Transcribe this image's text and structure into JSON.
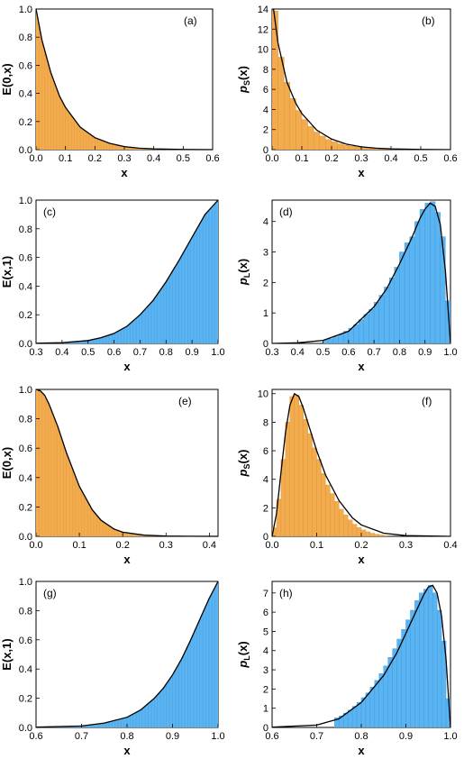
{
  "colors": {
    "orange": "#f2ac4e",
    "orange_edge": "#dc9136",
    "blue": "#5ab4f2",
    "blue_edge": "#3c96d9",
    "curve": "#000000"
  },
  "chart_data": [
    {
      "id": "a",
      "type": "area",
      "panel_label": "(a)",
      "xlabel": "x",
      "ylabel": "E(0,x)",
      "xlim": [
        0,
        0.6
      ],
      "ylim": [
        0,
        1.0
      ],
      "xticks": [
        0.0,
        0.1,
        0.2,
        0.3,
        0.4,
        0.5,
        0.6
      ],
      "yticks": [
        0.0,
        0.2,
        0.4,
        0.6,
        0.8,
        1.0
      ],
      "fill": "orange",
      "x": [
        0.0,
        0.02,
        0.05,
        0.08,
        0.1,
        0.15,
        0.2,
        0.25,
        0.3,
        0.35,
        0.4,
        0.5,
        0.6
      ],
      "y": [
        1.0,
        0.78,
        0.55,
        0.38,
        0.3,
        0.16,
        0.085,
        0.045,
        0.022,
        0.01,
        0.005,
        0.001,
        0.0
      ]
    },
    {
      "id": "b",
      "type": "bar",
      "panel_label": "(b)",
      "xlabel": "x",
      "ylabel": "pS(x)",
      "ylabel_main": "p",
      "ylabel_sub": "S",
      "ylabel_tail": "(x)",
      "xlim": [
        0,
        0.6
      ],
      "ylim": [
        0,
        14
      ],
      "xticks": [
        0.0,
        0.1,
        0.2,
        0.3,
        0.4,
        0.5,
        0.6
      ],
      "yticks": [
        0,
        2,
        4,
        6,
        8,
        10,
        12,
        14
      ],
      "fill": "orange",
      "bin_width": 0.02,
      "x": [
        0.01,
        0.03,
        0.05,
        0.07,
        0.09,
        0.11,
        0.13,
        0.15,
        0.17,
        0.19,
        0.21,
        0.23,
        0.25,
        0.27,
        0.29,
        0.31,
        0.33,
        0.35,
        0.37,
        0.39,
        0.41,
        0.43,
        0.45
      ],
      "values": [
        13.8,
        9.2,
        6.7,
        5.1,
        3.9,
        3.0,
        2.3,
        1.75,
        1.35,
        1.0,
        0.78,
        0.58,
        0.44,
        0.33,
        0.25,
        0.18,
        0.13,
        0.1,
        0.07,
        0.05,
        0.03,
        0.02,
        0.01
      ],
      "curve_x": [
        0.005,
        0.02,
        0.05,
        0.08,
        0.1,
        0.15,
        0.2,
        0.25,
        0.3,
        0.35,
        0.4,
        0.5,
        0.6
      ],
      "curve_y": [
        14.0,
        10.6,
        6.7,
        4.6,
        3.6,
        1.95,
        1.05,
        0.55,
        0.28,
        0.14,
        0.07,
        0.015,
        0.0
      ]
    },
    {
      "id": "c",
      "type": "area",
      "panel_label": "(c)",
      "xlabel": "x",
      "ylabel": "E(x,1)",
      "xlim": [
        0.3,
        1.0
      ],
      "ylim": [
        0,
        1.0
      ],
      "xticks": [
        0.3,
        0.4,
        0.5,
        0.6,
        0.7,
        0.8,
        0.9,
        1.0
      ],
      "yticks": [
        0.0,
        0.2,
        0.4,
        0.6,
        0.8,
        1.0
      ],
      "fill": "blue",
      "x": [
        0.3,
        0.4,
        0.5,
        0.55,
        0.6,
        0.65,
        0.7,
        0.75,
        0.8,
        0.85,
        0.9,
        0.95,
        1.0
      ],
      "y": [
        0.001,
        0.005,
        0.02,
        0.04,
        0.07,
        0.12,
        0.2,
        0.3,
        0.43,
        0.58,
        0.74,
        0.9,
        1.0
      ]
    },
    {
      "id": "d",
      "type": "bar",
      "panel_label": "(d)",
      "xlabel": "x",
      "ylabel": "pL(x)",
      "ylabel_main": "p",
      "ylabel_sub": "L",
      "ylabel_tail": "(x)",
      "xlim": [
        0.3,
        1.0
      ],
      "ylim": [
        0,
        4.7
      ],
      "xticks": [
        0.3,
        0.4,
        0.5,
        0.6,
        0.7,
        0.8,
        0.9,
        1.0
      ],
      "yticks": [
        0,
        1,
        2,
        3,
        4
      ],
      "fill": "blue",
      "bin_width": 0.02,
      "x": [
        0.51,
        0.53,
        0.55,
        0.57,
        0.59,
        0.61,
        0.63,
        0.65,
        0.67,
        0.69,
        0.71,
        0.73,
        0.75,
        0.77,
        0.79,
        0.81,
        0.83,
        0.85,
        0.87,
        0.89,
        0.91,
        0.93,
        0.95,
        0.97,
        0.99
      ],
      "values": [
        0.12,
        0.16,
        0.22,
        0.3,
        0.4,
        0.5,
        0.62,
        0.78,
        0.95,
        1.12,
        1.35,
        1.58,
        1.85,
        2.15,
        2.5,
        3.0,
        3.3,
        3.5,
        4.0,
        4.4,
        4.6,
        4.65,
        4.3,
        3.5,
        1.4
      ],
      "curve_x": [
        0.3,
        0.4,
        0.5,
        0.6,
        0.7,
        0.75,
        0.8,
        0.85,
        0.88,
        0.9,
        0.92,
        0.94,
        0.96,
        0.98,
        1.0
      ],
      "curve_y": [
        0.0,
        0.02,
        0.1,
        0.4,
        1.2,
        1.8,
        2.6,
        3.5,
        4.1,
        4.4,
        4.6,
        4.5,
        3.9,
        2.4,
        0.0
      ]
    },
    {
      "id": "e",
      "type": "area",
      "panel_label": "(e)",
      "xlabel": "x",
      "ylabel": "E(0,x)",
      "xlim": [
        0,
        0.42
      ],
      "ylim": [
        0,
        1.0
      ],
      "xticks": [
        0.0,
        0.1,
        0.2,
        0.3,
        0.4
      ],
      "yticks": [
        0.0,
        0.2,
        0.4,
        0.6,
        0.8,
        1.0
      ],
      "fill": "orange",
      "x": [
        0.0,
        0.01,
        0.02,
        0.03,
        0.05,
        0.07,
        0.1,
        0.13,
        0.15,
        0.18,
        0.2,
        0.25,
        0.3,
        0.35,
        0.42
      ],
      "y": [
        1.0,
        0.99,
        0.96,
        0.9,
        0.75,
        0.57,
        0.34,
        0.18,
        0.11,
        0.05,
        0.028,
        0.008,
        0.002,
        0.0005,
        0.0
      ]
    },
    {
      "id": "f",
      "type": "bar",
      "panel_label": "(f)",
      "xlabel": "x",
      "ylabel": "pS(x)",
      "ylabel_main": "p",
      "ylabel_sub": "S",
      "ylabel_tail": "(x)",
      "xlim": [
        0,
        0.4
      ],
      "ylim": [
        0,
        10.3
      ],
      "xticks": [
        0.0,
        0.1,
        0.2,
        0.3,
        0.4
      ],
      "yticks": [
        0,
        2,
        4,
        6,
        8,
        10
      ],
      "fill": "orange",
      "bin_width": 0.01,
      "x": [
        0.005,
        0.015,
        0.025,
        0.035,
        0.045,
        0.055,
        0.065,
        0.075,
        0.085,
        0.095,
        0.105,
        0.115,
        0.125,
        0.135,
        0.145,
        0.155,
        0.165,
        0.175,
        0.185,
        0.195,
        0.205,
        0.215,
        0.225,
        0.235,
        0.245,
        0.255
      ],
      "values": [
        0.6,
        2.6,
        5.4,
        8.0,
        9.8,
        9.9,
        9.2,
        8.2,
        7.2,
        6.2,
        5.4,
        4.4,
        3.6,
        3.0,
        2.45,
        1.9,
        1.5,
        1.15,
        0.85,
        0.62,
        0.45,
        0.32,
        0.22,
        0.15,
        0.1,
        0.06
      ],
      "curve_x": [
        0.0,
        0.01,
        0.02,
        0.03,
        0.04,
        0.05,
        0.06,
        0.07,
        0.08,
        0.1,
        0.12,
        0.15,
        0.18,
        0.2,
        0.25,
        0.3,
        0.4
      ],
      "curve_y": [
        0.0,
        1.6,
        4.5,
        7.3,
        9.2,
        10.0,
        9.8,
        9.0,
        8.0,
        6.0,
        4.3,
        2.5,
        1.3,
        0.8,
        0.22,
        0.05,
        0.0
      ]
    },
    {
      "id": "g",
      "type": "area",
      "panel_label": "(g)",
      "xlabel": "x",
      "ylabel": "E(x,1)",
      "xlim": [
        0.6,
        1.0
      ],
      "ylim": [
        0,
        1.0
      ],
      "xticks": [
        0.6,
        0.7,
        0.8,
        0.9,
        1.0
      ],
      "yticks": [
        0.0,
        0.2,
        0.4,
        0.6,
        0.8,
        1.0
      ],
      "fill": "blue",
      "x": [
        0.6,
        0.7,
        0.75,
        0.8,
        0.83,
        0.86,
        0.88,
        0.9,
        0.92,
        0.94,
        0.96,
        0.98,
        1.0
      ],
      "y": [
        0.002,
        0.01,
        0.03,
        0.07,
        0.12,
        0.2,
        0.27,
        0.36,
        0.47,
        0.6,
        0.74,
        0.88,
        1.0
      ]
    },
    {
      "id": "h",
      "type": "bar",
      "panel_label": "(h)",
      "xlabel": "x",
      "ylabel": "pL(x)",
      "ylabel_main": "p",
      "ylabel_sub": "L",
      "ylabel_tail": "(x)",
      "xlim": [
        0.6,
        1.0
      ],
      "ylim": [
        0,
        7.6
      ],
      "xticks": [
        0.6,
        0.7,
        0.8,
        0.9,
        1.0
      ],
      "yticks": [
        0,
        1,
        2,
        3,
        4,
        5,
        6,
        7
      ],
      "fill": "blue",
      "bin_width": 0.01,
      "x": [
        0.745,
        0.755,
        0.765,
        0.775,
        0.785,
        0.795,
        0.805,
        0.815,
        0.825,
        0.835,
        0.845,
        0.855,
        0.865,
        0.875,
        0.885,
        0.895,
        0.905,
        0.915,
        0.925,
        0.935,
        0.945,
        0.955,
        0.965,
        0.975,
        0.985,
        0.995
      ],
      "values": [
        0.5,
        0.6,
        0.75,
        0.9,
        1.1,
        1.3,
        1.55,
        1.8,
        2.1,
        2.45,
        2.8,
        3.2,
        3.65,
        4.1,
        4.6,
        5.1,
        5.6,
        6.1,
        6.6,
        7.0,
        7.2,
        7.4,
        7.0,
        6.1,
        4.5,
        1.5
      ],
      "curve_x": [
        0.6,
        0.7,
        0.75,
        0.8,
        0.85,
        0.88,
        0.9,
        0.92,
        0.94,
        0.95,
        0.96,
        0.97,
        0.98,
        0.99,
        1.0
      ],
      "curve_y": [
        0.02,
        0.12,
        0.45,
        1.3,
        2.7,
        3.9,
        4.9,
        5.9,
        6.9,
        7.3,
        7.4,
        7.0,
        5.8,
        3.6,
        0.0
      ]
    }
  ]
}
